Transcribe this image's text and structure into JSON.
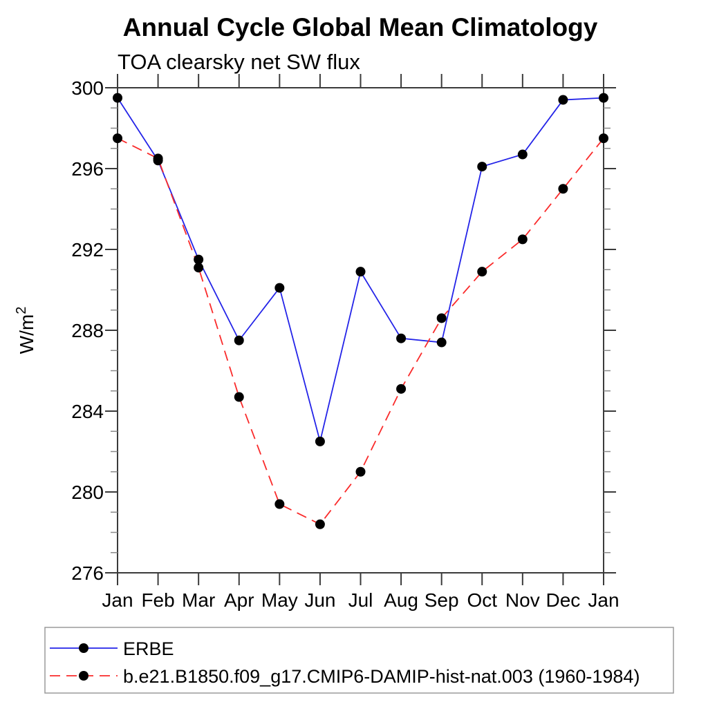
{
  "chart_data": {
    "type": "line",
    "title": "Annual Cycle Global Mean Climatology",
    "subtitle": "TOA clearsky net SW flux",
    "ylabel": "W/m²",
    "ylabel_main": "W/m",
    "ylabel_sup": "2",
    "categories": [
      "Jan",
      "Feb",
      "Mar",
      "Apr",
      "May",
      "Jun",
      "Jul",
      "Aug",
      "Sep",
      "Oct",
      "Nov",
      "Dec",
      "Jan"
    ],
    "ylim": [
      276,
      300
    ],
    "ytick_major": [
      276,
      280,
      284,
      288,
      292,
      296,
      300
    ],
    "ytick_minor_step": 1,
    "grid": false,
    "legend_position": "bottom-left-box",
    "series": [
      {
        "name": "ERBE",
        "color": "#2323e8",
        "style": "solid",
        "marker": "circle",
        "marker_color": "#000000",
        "values": [
          299.5,
          296.4,
          291.5,
          287.5,
          290.1,
          282.5,
          290.9,
          287.6,
          287.4,
          296.1,
          296.7,
          299.4,
          299.5
        ]
      },
      {
        "name": "b.e21.B1850.f09_g17.CMIP6-DAMIP-hist-nat.003 (1960-1984)",
        "color": "#fa2a2a",
        "style": "dashed",
        "marker": "circle",
        "marker_color": "#000000",
        "values": [
          297.5,
          296.5,
          291.1,
          284.7,
          279.4,
          278.4,
          281.0,
          285.1,
          288.6,
          290.9,
          292.5,
          295.0,
          297.5
        ]
      }
    ],
    "colors": {
      "background": "#ffffff",
      "frame": "#3a3a3a",
      "major_tick": "#3a3a3a",
      "minor_tick": "#8a8a8a",
      "text": "#000000",
      "legend_border": "#9a9a9a"
    }
  }
}
